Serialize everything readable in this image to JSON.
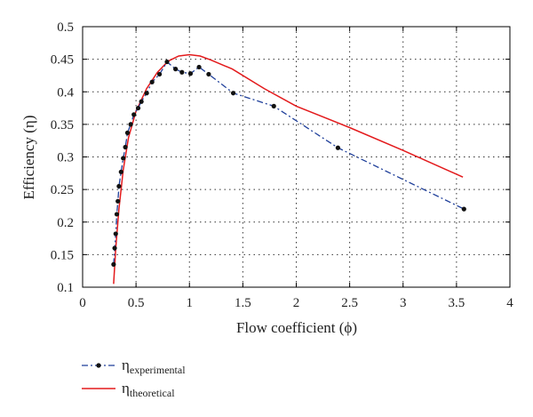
{
  "chart_data": {
    "type": "line",
    "xlabel": "Flow coefficient (ϕ)",
    "ylabel": "Efficiency (η)",
    "xlim": [
      0,
      4
    ],
    "ylim": [
      0.1,
      0.5
    ],
    "xticks": [
      0,
      0.5,
      1,
      1.5,
      2,
      2.5,
      3,
      3.5,
      4
    ],
    "yticks": [
      0.1,
      0.15,
      0.2,
      0.25,
      0.3,
      0.35,
      0.4,
      0.45,
      0.5
    ],
    "xtick_labels": [
      "0",
      "0.5",
      "1",
      "1.5",
      "2",
      "2.5",
      "3",
      "3.5",
      "4"
    ],
    "ytick_labels": [
      "0.1",
      "0.15",
      "0.2",
      "0.25",
      "0.3",
      "0.35",
      "0.4",
      "0.45",
      "0.5"
    ],
    "grid": true,
    "legend_position": "below",
    "series": [
      {
        "name": "η",
        "subscript": "experimental",
        "style": "dash-dot with markers",
        "color": "#1f3f9a",
        "marker_color": "#111111",
        "x": [
          0.29,
          0.3,
          0.31,
          0.32,
          0.33,
          0.34,
          0.36,
          0.38,
          0.4,
          0.42,
          0.45,
          0.48,
          0.52,
          0.55,
          0.6,
          0.65,
          0.72,
          0.79,
          0.87,
          0.93,
          1.01,
          1.09,
          1.18,
          1.41,
          1.79,
          2.39,
          3.57
        ],
        "y": [
          0.135,
          0.16,
          0.182,
          0.212,
          0.232,
          0.255,
          0.277,
          0.298,
          0.315,
          0.337,
          0.35,
          0.365,
          0.375,
          0.385,
          0.398,
          0.415,
          0.427,
          0.446,
          0.435,
          0.43,
          0.428,
          0.438,
          0.427,
          0.398,
          0.378,
          0.314,
          0.22
        ]
      },
      {
        "name": "η",
        "subscript": "theoretical",
        "style": "solid",
        "color": "#e31a1c",
        "x": [
          0.29,
          0.31,
          0.34,
          0.38,
          0.43,
          0.5,
          0.6,
          0.7,
          0.8,
          0.9,
          1.0,
          1.1,
          1.2,
          1.4,
          1.7,
          2.0,
          2.5,
          3.0,
          3.56
        ],
        "y": [
          0.105,
          0.16,
          0.22,
          0.28,
          0.33,
          0.37,
          0.405,
          0.43,
          0.447,
          0.455,
          0.457,
          0.455,
          0.449,
          0.435,
          0.405,
          0.378,
          0.345,
          0.31,
          0.269
        ]
      }
    ]
  }
}
